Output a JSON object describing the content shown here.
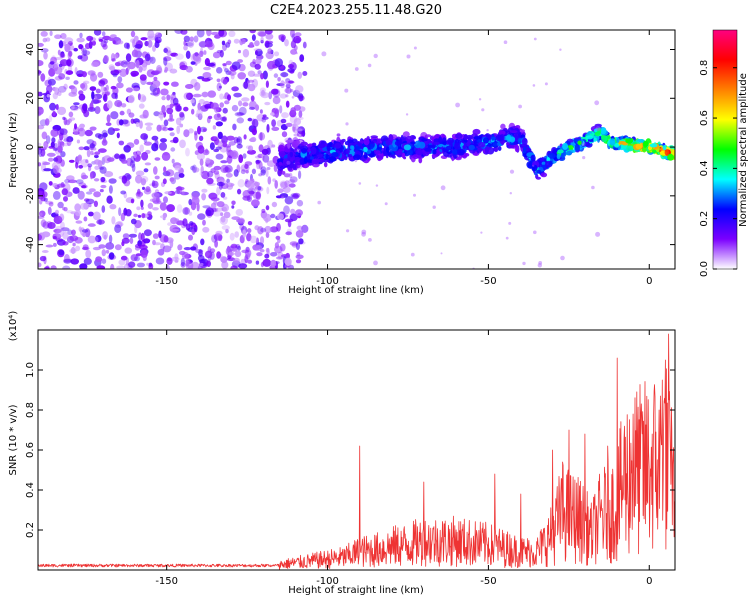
{
  "title": "C2E4.2023.255.11.48.G20",
  "chart_data": [
    {
      "type": "heatmap",
      "xlabel": "Height of straight line (km)",
      "ylabel": "Frequency (Hz)",
      "xlim": [
        -190,
        8
      ],
      "ylim": [
        -50,
        48
      ],
      "xticks": [
        -150,
        -100,
        -50,
        0
      ],
      "yticks": [
        -40,
        -20,
        0,
        20,
        40
      ],
      "colorbar": {
        "label": "Normalized spectral amplitude",
        "range": [
          0.0,
          0.95
        ],
        "ticks": [
          0.0,
          0.2,
          0.4,
          0.6,
          0.8
        ],
        "colors": [
          "#ffffff",
          "#7b00ff",
          "#0000ff",
          "#00ffff",
          "#00ff00",
          "#ffff00",
          "#ff8000",
          "#ff0000",
          "#ff0080"
        ]
      },
      "features": {
        "noise_region_x": [
          -190,
          -115
        ],
        "noise_amplitude": 0.15,
        "band": [
          {
            "x": -115,
            "center_hz": -5,
            "halfwidth_hz": 8,
            "amplitude": 0.25
          },
          {
            "x": -100,
            "center_hz": -2,
            "halfwidth_hz": 7,
            "amplitude": 0.3
          },
          {
            "x": -80,
            "center_hz": 0,
            "halfwidth_hz": 6,
            "amplitude": 0.3
          },
          {
            "x": -60,
            "center_hz": 0,
            "halfwidth_hz": 6,
            "amplitude": 0.3
          },
          {
            "x": -40,
            "center_hz": 4,
            "halfwidth_hz": 6,
            "amplitude": 0.3
          },
          {
            "x": -35,
            "center_hz": -10,
            "halfwidth_hz": 5,
            "amplitude": 0.35
          },
          {
            "x": -30,
            "center_hz": -4,
            "halfwidth_hz": 4,
            "amplitude": 0.4
          },
          {
            "x": -15,
            "center_hz": 6,
            "halfwidth_hz": 4,
            "amplitude": 0.45
          },
          {
            "x": -12,
            "center_hz": 2,
            "halfwidth_hz": 3,
            "amplitude": 0.55
          },
          {
            "x": 0,
            "center_hz": 0,
            "halfwidth_hz": 3,
            "amplitude": 0.8
          },
          {
            "x": 8,
            "center_hz": -3,
            "halfwidth_hz": 3,
            "amplitude": 0.7
          }
        ]
      }
    },
    {
      "type": "line",
      "xlabel": "Height of straight line (km)",
      "ylabel": "SNR (10 * v/v)",
      "scale_note": "(x10⁴)",
      "xlim": [
        -190,
        8
      ],
      "ylim": [
        0,
        1.2
      ],
      "xticks": [
        -150,
        -100,
        -50,
        0
      ],
      "yticks": [
        0.2,
        0.4,
        0.6,
        0.8,
        1.0
      ],
      "color": "#ee3333",
      "series": [
        {
          "x": [
            -190,
            -180,
            -170,
            -160,
            -150,
            -140,
            -130,
            -120,
            -115,
            -110,
            -105,
            -100,
            -95,
            -90,
            -85,
            -80,
            -75,
            -70,
            -65,
            -60,
            -55,
            -50,
            -45,
            -40,
            -35,
            -30,
            -27,
            -25,
            -22,
            -20,
            -18,
            -15,
            -13,
            -10,
            -8,
            -5,
            -3,
            0,
            3,
            5,
            8
          ],
          "values": [
            0.02,
            0.02,
            0.02,
            0.02,
            0.02,
            0.02,
            0.02,
            0.02,
            0.03,
            0.04,
            0.05,
            0.06,
            0.07,
            0.1,
            0.11,
            0.13,
            0.14,
            0.16,
            0.16,
            0.16,
            0.15,
            0.14,
            0.12,
            0.1,
            0.1,
            0.2,
            0.33,
            0.3,
            0.28,
            0.25,
            0.2,
            0.3,
            0.32,
            0.35,
            0.5,
            0.55,
            0.55,
            0.58,
            0.6,
            0.65,
            0.4
          ]
        },
        {
          "x": [
            -90,
            -70,
            -48,
            -40,
            -30,
            -25,
            -20,
            -13,
            -10,
            -5,
            3,
            4,
            5,
            6,
            7
          ],
          "values": [
            0.62,
            0.44,
            0.48,
            0.38,
            0.6,
            0.7,
            0.68,
            0.62,
            1.06,
            0.78,
            0.8,
            0.95,
            1.05,
            1.18,
            0.7
          ]
        }
      ]
    }
  ]
}
